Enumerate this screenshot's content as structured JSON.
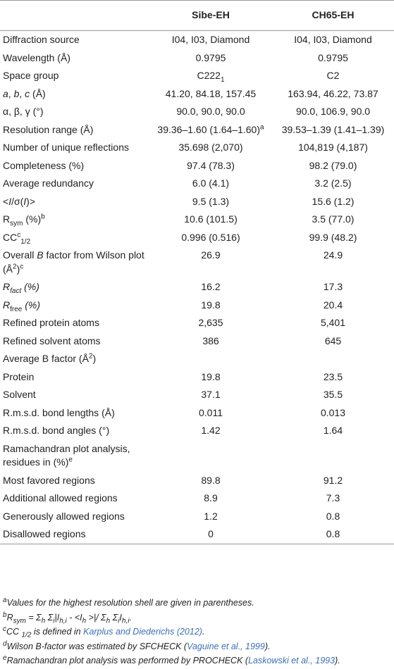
{
  "header": {
    "col1": "Sibe-EH",
    "col2": "CH65-EH"
  },
  "rows": [
    {
      "label": "Diffraction source",
      "values": [
        "I04, I03, Diamond",
        "I04, I03, Diamond"
      ]
    },
    {
      "label": "Wavelength (Å)",
      "values": [
        "0.9795",
        "0.9795"
      ]
    },
    {
      "label": "Space group",
      "values": [
        [
          {
            "text": "C222"
          },
          {
            "text": "1",
            "style": "sub"
          }
        ],
        "C2"
      ]
    },
    {
      "label": [
        {
          "text": "a",
          "style": "i"
        },
        {
          "text": ", "
        },
        {
          "text": "b",
          "style": "i"
        },
        {
          "text": ", "
        },
        {
          "text": "c",
          "style": "i"
        },
        {
          "text": " (Å)"
        }
      ],
      "values": [
        "41.20, 84.18, 157.45",
        "163.94, 46.22, 73.87"
      ]
    },
    {
      "label": "α, β, γ (°)",
      "values": [
        "90.0, 90.0, 90.0",
        "90.0, 106.9, 90.0"
      ]
    },
    {
      "label": "Resolution range (Å)",
      "values": [
        [
          {
            "text": "39.36–1.60 (1.64–1.60)"
          },
          {
            "text": "a",
            "style": "sup"
          }
        ],
        "39.53–1.39 (1.41–1.39)"
      ]
    },
    {
      "label": "Number of unique reflections",
      "values": [
        "35.698 (2,070)",
        "104,819 (4,187)"
      ]
    },
    {
      "label": "Completeness (%)",
      "values": [
        "97.4 (78.3)",
        "98.2 (79.0)"
      ]
    },
    {
      "label": "Average redundancy",
      "values": [
        "6.0 (4.1)",
        "3.2 (2.5)"
      ]
    },
    {
      "label": [
        {
          "text": "<"
        },
        {
          "text": "I",
          "style": "i"
        },
        {
          "text": "/σ("
        },
        {
          "text": "I",
          "style": "i"
        },
        {
          "text": ")>"
        }
      ],
      "values": [
        "9.5 (1.3)",
        "15.6 (1.2)"
      ]
    },
    {
      "label": [
        {
          "text": "R"
        },
        {
          "text": "sym",
          "style": "sub"
        },
        {
          "text": " (%)"
        },
        {
          "text": "b",
          "style": "sup"
        }
      ],
      "values": [
        "10.6 (101.5)",
        "3.5 (77.0)"
      ]
    },
    {
      "label": [
        {
          "text": "CC"
        },
        {
          "text": "c",
          "style": "sup"
        },
        {
          "text": "1/2",
          "style": "sub"
        }
      ],
      "values": [
        "0.996 (0.516)",
        "99.9 (48.2)"
      ]
    },
    {
      "label": [
        {
          "text": "Overall "
        },
        {
          "text": "B",
          "style": "i"
        },
        {
          "text": " factor from Wilson plot (Å"
        },
        {
          "text": "2",
          "style": "sup"
        },
        {
          "text": ")"
        },
        {
          "text": "c",
          "style": "sup"
        }
      ],
      "values": [
        "26.9",
        "24.9"
      ]
    },
    {
      "label": [
        {
          "text": "R",
          "style": "i"
        },
        {
          "text": "fact",
          "style": "i sub"
        },
        {
          "text": " (%)",
          "style": "i"
        }
      ],
      "values": [
        "16.2",
        "17.3"
      ]
    },
    {
      "label": [
        {
          "text": "R",
          "style": "i"
        },
        {
          "text": "free",
          "style": "sub"
        },
        {
          "text": " (%)",
          "style": "i"
        }
      ],
      "values": [
        "19.8",
        "20.4"
      ]
    },
    {
      "label": "Refined protein atoms",
      "values": [
        "2,635",
        "5,401"
      ]
    },
    {
      "label": "Refined solvent atoms",
      "values": [
        "386",
        "645"
      ]
    },
    {
      "label": [
        {
          "text": "Average B factor (Å"
        },
        {
          "text": "2",
          "style": "sup"
        },
        {
          "text": ")"
        }
      ],
      "values": []
    },
    {
      "label": "Protein",
      "values": [
        "19.8",
        "23.5"
      ]
    },
    {
      "label": "Solvent",
      "values": [
        "37.1",
        "35.5"
      ]
    },
    {
      "label": "R.m.s.d. bond lengths (Å)",
      "values": [
        "0.011",
        "0.013"
      ]
    },
    {
      "label": "R.m.s.d. bond angles (°)",
      "values": [
        "1.42",
        "1.64"
      ]
    },
    {
      "label": [
        {
          "text": "Ramachandran plot analysis, residues in (%)"
        },
        {
          "text": "e",
          "style": "sup"
        }
      ],
      "values": []
    },
    {
      "label": "Most favored regions",
      "values": [
        "89.8",
        "91.2"
      ]
    },
    {
      "label": "Additional allowed regions",
      "values": [
        "8.9",
        "7.3"
      ]
    },
    {
      "label": "Generously allowed regions",
      "values": [
        "1.2",
        "0.8"
      ]
    },
    {
      "label": "Disallowed regions",
      "values": [
        "0",
        "0.8"
      ]
    }
  ],
  "footnotes": [
    [
      {
        "text": "a",
        "style": "sup i"
      },
      {
        "text": "Values for the highest resolution shell are given in parentheses.",
        "style": "i"
      }
    ],
    [
      {
        "text": "b",
        "style": "sup i"
      },
      {
        "text": "R",
        "style": "i"
      },
      {
        "text": "sym",
        "style": "i sub"
      },
      {
        "text": " = Σ",
        "style": "i"
      },
      {
        "text": "h",
        "style": "i sub"
      },
      {
        "text": " Σ",
        "style": "i"
      },
      {
        "text": "i",
        "style": "i sub"
      },
      {
        "text": "|I",
        "style": "i"
      },
      {
        "text": "h,i",
        "style": "i sub"
      },
      {
        "text": " - <I",
        "style": "i"
      },
      {
        "text": "h",
        "style": "i sub"
      },
      {
        "text": " >|/ Σ",
        "style": "i"
      },
      {
        "text": "h",
        "style": "i sub"
      },
      {
        "text": " Σ",
        "style": "i"
      },
      {
        "text": "i",
        "style": "i sub"
      },
      {
        "text": "I",
        "style": "i"
      },
      {
        "text": "h,i",
        "style": "i sub"
      },
      {
        "text": ".",
        "style": "i"
      }
    ],
    [
      {
        "text": "c",
        "style": "sup i"
      },
      {
        "text": "CC ",
        "style": "i"
      },
      {
        "text": "1/2",
        "style": "i sub"
      },
      {
        "text": " is defined in ",
        "style": "i"
      },
      {
        "text": "Karplus and Diederichs (2012)",
        "style": "i link"
      },
      {
        "text": ".",
        "style": "i"
      }
    ],
    [
      {
        "text": "d",
        "style": "sup i"
      },
      {
        "text": "Wilson B-factor was estimated by SFCHECK (",
        "style": "i"
      },
      {
        "text": "Vaguine et al., 1999",
        "style": "i link"
      },
      {
        "text": ").",
        "style": "i"
      }
    ],
    [
      {
        "text": "e",
        "style": "sup i"
      },
      {
        "text": "Ramachandran plot analysis was performed by PROCHECK (",
        "style": "i"
      },
      {
        "text": "Laskowski et al., 1993",
        "style": "i link"
      },
      {
        "text": ").",
        "style": "i"
      }
    ]
  ]
}
